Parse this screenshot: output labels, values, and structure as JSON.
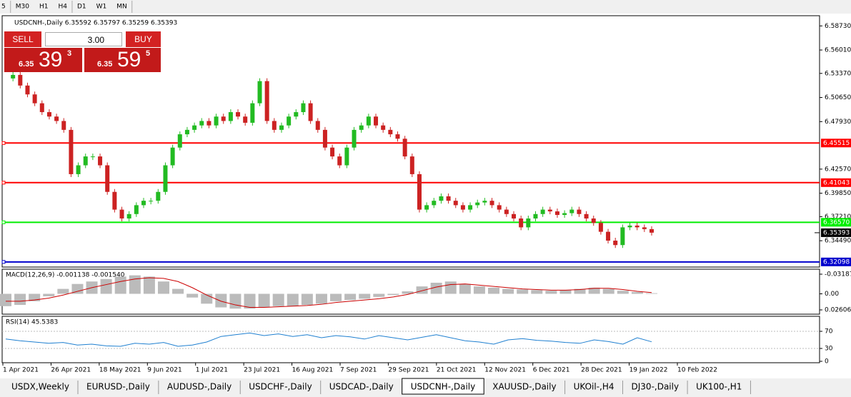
{
  "toolbar": {
    "timeframes": [
      "5",
      "M30",
      "H1",
      "H4",
      "D1",
      "W1",
      "MN"
    ]
  },
  "header": {
    "symbol_info": "USDCNH-,Daily 6.35592 6.35797 6.35259 6.35393"
  },
  "trade_panel": {
    "sell": "SELL",
    "buy": "BUY",
    "lot": "3.00",
    "sell_price": {
      "prefix": "6.35",
      "big": "39",
      "small": "3"
    },
    "buy_price": {
      "prefix": "6.35",
      "big": "59",
      "small": "5"
    }
  },
  "chart_data": {
    "type": "candlestick",
    "ylim": [
      6.3152,
      6.5988
    ],
    "yticks": [
      {
        "value": 6.5873,
        "label": "6.58730"
      },
      {
        "value": 6.5601,
        "label": "6.56010"
      },
      {
        "value": 6.5337,
        "label": "6.53370"
      },
      {
        "value": 6.5065,
        "label": "6.50650"
      },
      {
        "value": 6.4793,
        "label": "6.47930"
      },
      {
        "value": 6.4257,
        "label": "6.42570"
      },
      {
        "value": 6.3985,
        "label": "6.39850"
      },
      {
        "value": 6.3721,
        "label": "6.37210"
      },
      {
        "value": 6.3449,
        "label": "6.34490"
      }
    ],
    "levels": [
      {
        "value": 6.45515,
        "label": "6.45515",
        "color": "#ff0000"
      },
      {
        "value": 6.41043,
        "label": "6.41043",
        "color": "#ff0000"
      },
      {
        "value": 6.3657,
        "label": "6.36570",
        "color": "#00ee00"
      },
      {
        "value": 6.32098,
        "label": "6.32098",
        "color": "#0000cc"
      }
    ],
    "last_price": {
      "value": 6.35393,
      "label": "6.35393"
    },
    "closes": [
      6.528,
      6.532,
      6.52,
      6.51,
      6.5,
      6.49,
      6.485,
      6.48,
      6.47,
      6.42,
      6.43,
      6.44,
      6.44,
      6.43,
      6.4,
      6.38,
      6.37,
      6.375,
      6.385,
      6.39,
      6.39,
      6.4,
      6.43,
      6.45,
      6.465,
      6.47,
      6.475,
      6.48,
      6.475,
      6.485,
      6.48,
      6.49,
      6.485,
      6.478,
      6.5,
      6.525,
      6.48,
      6.47,
      6.475,
      6.485,
      6.49,
      6.5,
      6.48,
      6.47,
      6.45,
      6.44,
      6.43,
      6.45,
      6.47,
      6.475,
      6.485,
      6.475,
      6.47,
      6.465,
      6.46,
      6.44,
      6.42,
      6.38,
      6.385,
      6.39,
      6.395,
      6.39,
      6.385,
      6.38,
      6.385,
      6.388,
      6.39,
      6.385,
      6.38,
      6.375,
      6.37,
      6.36,
      6.37,
      6.375,
      6.38,
      6.378,
      6.374,
      6.376,
      6.38,
      6.375,
      6.37,
      6.365,
      6.355,
      6.345,
      6.34,
      6.36,
      6.362,
      6.36,
      6.358,
      6.354
    ],
    "macd": {
      "label": "MACD(12,26,9) -0.001138 -0.001540",
      "ylim": [
        0.033,
        -0.0388
      ],
      "yticks": [
        {
          "value": 0.02606,
          "label": "0.02606"
        },
        {
          "value": 0,
          "label": "0.00"
        },
        {
          "value": -0.03187,
          "label": "-0.03187"
        }
      ],
      "histogram": [
        0.02,
        0.018,
        0.012,
        0.004,
        -0.008,
        -0.016,
        -0.02,
        -0.024,
        -0.028,
        -0.03,
        -0.028,
        -0.02,
        -0.008,
        0.006,
        0.016,
        0.022,
        0.024,
        0.024,
        0.022,
        0.02,
        0.02,
        0.018,
        0.016,
        0.012,
        0.01,
        0.008,
        0.005,
        0.002,
        -0.004,
        -0.012,
        -0.018,
        -0.02,
        -0.016,
        -0.012,
        -0.01,
        -0.008,
        -0.007,
        -0.006,
        -0.005,
        -0.006,
        -0.008,
        -0.01,
        -0.008,
        -0.005,
        -0.003,
        -0.001
      ],
      "signal": [
        0.012,
        0.012,
        0.01,
        0.007,
        0.002,
        -0.004,
        -0.01,
        -0.015,
        -0.02,
        -0.024,
        -0.026,
        -0.025,
        -0.02,
        -0.01,
        0.002,
        0.012,
        0.018,
        0.022,
        0.022,
        0.021,
        0.02,
        0.019,
        0.017,
        0.014,
        0.012,
        0.01,
        0.008,
        0.005,
        0.001,
        -0.005,
        -0.011,
        -0.015,
        -0.016,
        -0.014,
        -0.012,
        -0.01,
        -0.008,
        -0.007,
        -0.006,
        -0.006,
        -0.007,
        -0.009,
        -0.009,
        -0.007,
        -0.004,
        -0.002
      ]
    },
    "rsi": {
      "label": "RSI(14) 45.5383",
      "ylim": [
        0,
        100
      ],
      "yticks": [
        70,
        30,
        0
      ],
      "values": [
        52,
        48,
        45,
        42,
        44,
        38,
        40,
        36,
        35,
        42,
        40,
        44,
        35,
        38,
        45,
        58,
        62,
        66,
        60,
        64,
        58,
        62,
        55,
        60,
        57,
        52,
        60,
        55,
        50,
        56,
        62,
        55,
        48,
        45,
        40,
        50,
        53,
        49,
        47,
        44,
        42,
        50,
        46,
        40,
        55,
        45.5383
      ]
    },
    "dates": [
      "1 Apr 2021",
      "26 Apr 2021",
      "18 May 2021",
      "9 Jun 2021",
      "1 Jul 2021",
      "23 Jul 2021",
      "16 Aug 2021",
      "7 Sep 2021",
      "29 Sep 2021",
      "21 Oct 2021",
      "12 Nov 2021",
      "6 Dec 2021",
      "28 Dec 2021",
      "19 Jan 2022",
      "10 Feb 2022"
    ]
  },
  "tabs": [
    "USDX,Weekly",
    "EURUSD-,Daily",
    "AUDUSD-,Daily",
    "USDCHF-,Daily",
    "USDCAD-,Daily",
    "USDCNH-,Daily",
    "XAUUSD-,Daily",
    "UKOil-,H4",
    "DJ30-,Daily",
    "UK100-,H1"
  ],
  "active_tab": "USDCNH-,Daily"
}
